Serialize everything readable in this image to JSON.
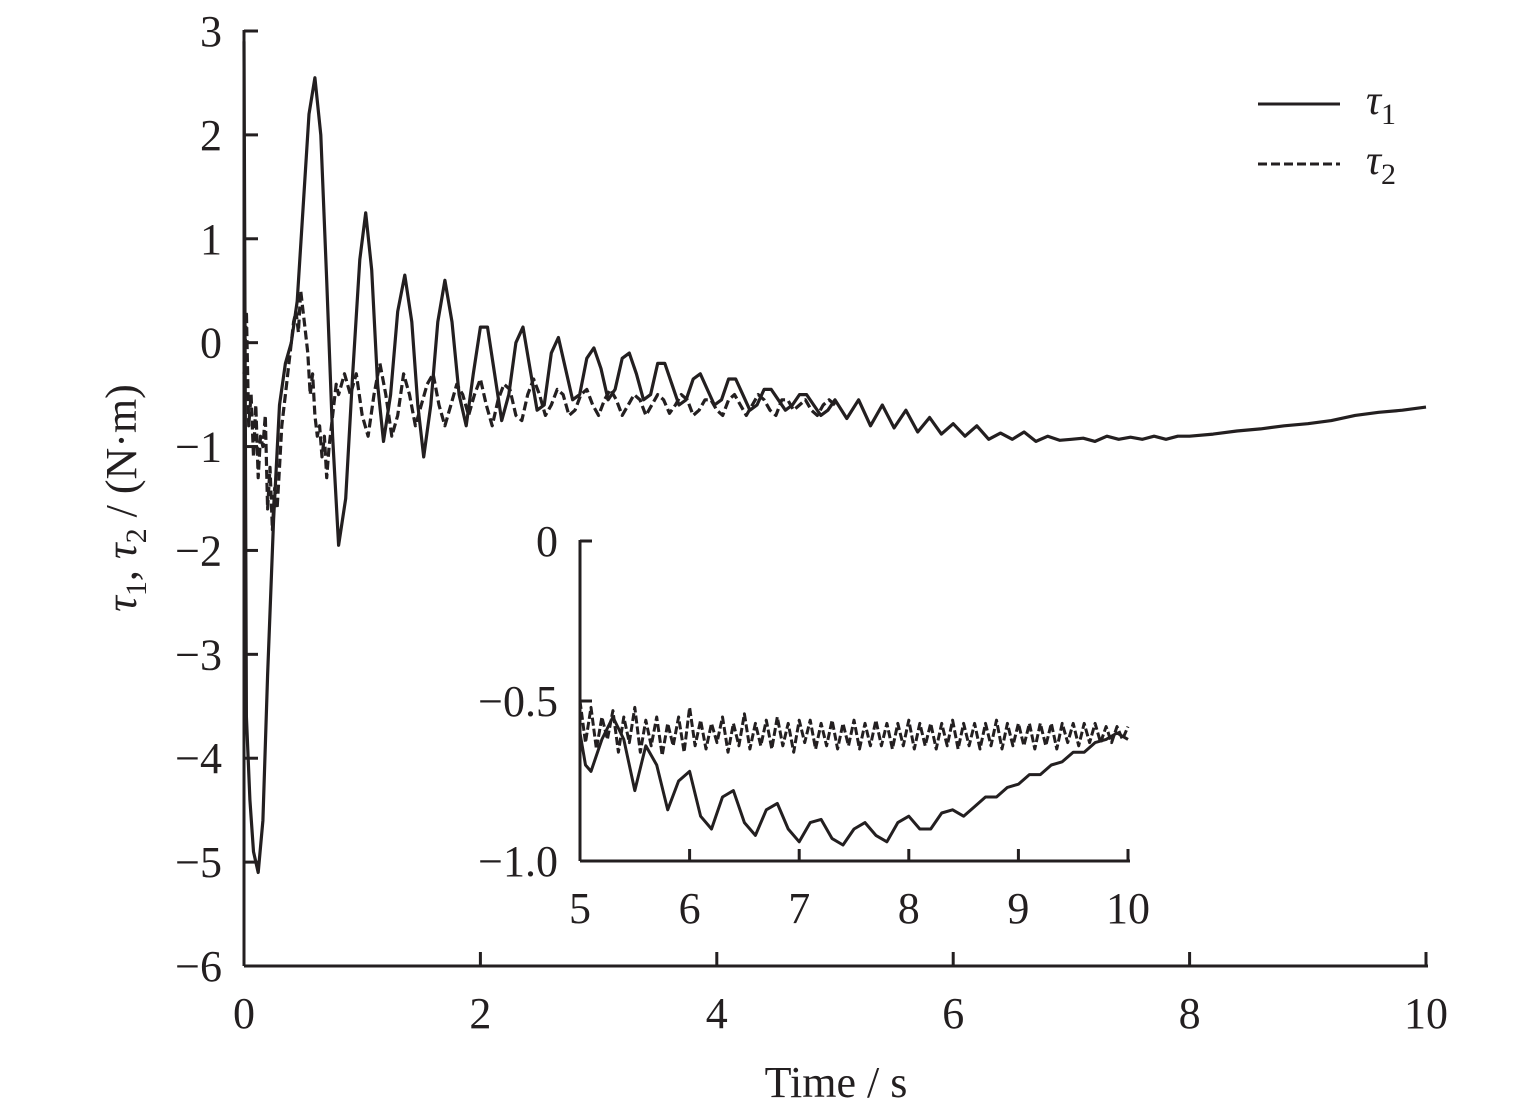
{
  "chart_data": [
    {
      "type": "line",
      "xlabel": "Time / s",
      "ylabel": "τ1, τ2 / (N·m)",
      "xlim": [
        0,
        10
      ],
      "ylim": [
        -6,
        3
      ],
      "xticks": [
        "0",
        "2",
        "4",
        "6",
        "8",
        "10"
      ],
      "yticks": [
        "3",
        "2",
        "1",
        "0",
        "−1",
        "−2",
        "−3",
        "−4",
        "−5",
        "−6"
      ],
      "grid": false,
      "legend_position": "top-right",
      "legend": [
        {
          "symbol": "τ",
          "subscript": "1",
          "style": "solid"
        },
        {
          "symbol": "τ",
          "subscript": "2",
          "style": "dashed"
        }
      ],
      "series": [
        {
          "name": "τ1",
          "style": "solid",
          "x": [
            0.0,
            0.02,
            0.05,
            0.08,
            0.12,
            0.16,
            0.2,
            0.25,
            0.3,
            0.35,
            0.4,
            0.45,
            0.5,
            0.55,
            0.6,
            0.65,
            0.7,
            0.75,
            0.8,
            0.86,
            0.92,
            0.98,
            1.03,
            1.08,
            1.13,
            1.18,
            1.24,
            1.3,
            1.36,
            1.42,
            1.47,
            1.52,
            1.58,
            1.64,
            1.7,
            1.76,
            1.82,
            1.88,
            1.94,
            2.0,
            2.06,
            2.12,
            2.18,
            2.24,
            2.3,
            2.36,
            2.42,
            2.48,
            2.54,
            2.6,
            2.66,
            2.72,
            2.78,
            2.84,
            2.9,
            2.96,
            3.02,
            3.08,
            3.14,
            3.2,
            3.26,
            3.32,
            3.38,
            3.44,
            3.5,
            3.56,
            3.62,
            3.68,
            3.74,
            3.8,
            3.86,
            3.92,
            3.98,
            4.04,
            4.1,
            4.16,
            4.22,
            4.28,
            4.34,
            4.4,
            4.46,
            4.52,
            4.58,
            4.64,
            4.7,
            4.76,
            4.82,
            4.88,
            4.94,
            5.0,
            5.1,
            5.2,
            5.3,
            5.4,
            5.5,
            5.6,
            5.7,
            5.8,
            5.9,
            6.0,
            6.1,
            6.2,
            6.3,
            6.4,
            6.5,
            6.6,
            6.7,
            6.8,
            6.9,
            7.0,
            7.1,
            7.2,
            7.3,
            7.4,
            7.5,
            7.6,
            7.7,
            7.8,
            7.9,
            8.0,
            8.2,
            8.4,
            8.6,
            8.8,
            9.0,
            9.2,
            9.4,
            9.6,
            9.8,
            10.0
          ],
          "y": [
            2.9,
            -3.6,
            -4.4,
            -4.9,
            -5.1,
            -4.6,
            -3.2,
            -1.7,
            -0.6,
            -0.2,
            0.0,
            0.4,
            1.3,
            2.2,
            2.55,
            2.0,
            0.6,
            -0.9,
            -1.95,
            -1.5,
            -0.3,
            0.8,
            1.25,
            0.7,
            -0.4,
            -0.95,
            -0.5,
            0.3,
            0.65,
            0.2,
            -0.6,
            -1.1,
            -0.6,
            0.2,
            0.6,
            0.2,
            -0.5,
            -0.8,
            -0.3,
            0.15,
            0.15,
            -0.3,
            -0.75,
            -0.5,
            0.0,
            0.15,
            -0.25,
            -0.65,
            -0.6,
            -0.1,
            0.05,
            -0.25,
            -0.55,
            -0.5,
            -0.15,
            -0.05,
            -0.25,
            -0.55,
            -0.45,
            -0.15,
            -0.1,
            -0.3,
            -0.55,
            -0.5,
            -0.2,
            -0.2,
            -0.4,
            -0.6,
            -0.55,
            -0.35,
            -0.3,
            -0.45,
            -0.6,
            -0.55,
            -0.35,
            -0.35,
            -0.5,
            -0.65,
            -0.6,
            -0.45,
            -0.45,
            -0.55,
            -0.65,
            -0.6,
            -0.5,
            -0.5,
            -0.6,
            -0.7,
            -0.65,
            -0.55,
            -0.73,
            -0.55,
            -0.8,
            -0.6,
            -0.82,
            -0.65,
            -0.86,
            -0.72,
            -0.88,
            -0.78,
            -0.9,
            -0.8,
            -0.93,
            -0.87,
            -0.93,
            -0.86,
            -0.95,
            -0.9,
            -0.94,
            -0.93,
            -0.92,
            -0.95,
            -0.9,
            -0.93,
            -0.91,
            -0.93,
            -0.9,
            -0.93,
            -0.9,
            -0.9,
            -0.88,
            -0.85,
            -0.83,
            -0.8,
            -0.78,
            -0.75,
            -0.7,
            -0.67,
            -0.65,
            -0.62
          ]
        },
        {
          "name": "τ2",
          "style": "dashed",
          "x": [
            0.0,
            0.02,
            0.04,
            0.06,
            0.08,
            0.1,
            0.12,
            0.14,
            0.16,
            0.18,
            0.2,
            0.22,
            0.24,
            0.26,
            0.28,
            0.3,
            0.32,
            0.34,
            0.36,
            0.38,
            0.4,
            0.42,
            0.44,
            0.46,
            0.48,
            0.5,
            0.52,
            0.54,
            0.56,
            0.58,
            0.6,
            0.62,
            0.64,
            0.66,
            0.68,
            0.7,
            0.72,
            0.74,
            0.76,
            0.78,
            0.8,
            0.85,
            0.9,
            0.95,
            1.0,
            1.05,
            1.1,
            1.15,
            1.2,
            1.25,
            1.3,
            1.35,
            1.4,
            1.45,
            1.5,
            1.55,
            1.6,
            1.65,
            1.7,
            1.75,
            1.8,
            1.85,
            1.9,
            1.95,
            2.0,
            2.05,
            2.1,
            2.15,
            2.2,
            2.25,
            2.3,
            2.35,
            2.4,
            2.45,
            2.5,
            2.55,
            2.6,
            2.65,
            2.7,
            2.75,
            2.8,
            2.85,
            2.9,
            2.95,
            3.0,
            3.05,
            3.1,
            3.15,
            3.2,
            3.25,
            3.3,
            3.35,
            3.4,
            3.45,
            3.5,
            3.55,
            3.6,
            3.65,
            3.7,
            3.75,
            3.8,
            3.85,
            3.9,
            3.95,
            4.0,
            4.05,
            4.1,
            4.15,
            4.2,
            4.25,
            4.3,
            4.35,
            4.4,
            4.45,
            4.5,
            4.55,
            4.6,
            4.65,
            4.7,
            4.75,
            4.8,
            4.85,
            4.9,
            4.95,
            5.0
          ],
          "y": [
            -0.3,
            0.3,
            -0.8,
            -0.5,
            -1.1,
            -0.6,
            -1.3,
            -0.9,
            -1.0,
            -0.7,
            -1.6,
            -1.2,
            -1.8,
            -1.4,
            -1.6,
            -1.2,
            -0.8,
            -0.6,
            -0.4,
            -0.2,
            0.0,
            0.2,
            0.3,
            0.1,
            0.5,
            0.3,
            0.1,
            -0.1,
            -0.5,
            -0.3,
            -0.7,
            -0.9,
            -0.8,
            -1.1,
            -0.9,
            -1.3,
            -1.0,
            -0.8,
            -0.6,
            -0.4,
            -0.5,
            -0.3,
            -0.5,
            -0.3,
            -0.7,
            -0.9,
            -0.5,
            -0.2,
            -0.5,
            -0.9,
            -0.7,
            -0.3,
            -0.5,
            -0.8,
            -0.6,
            -0.4,
            -0.3,
            -0.6,
            -0.8,
            -0.6,
            -0.4,
            -0.5,
            -0.7,
            -0.5,
            -0.35,
            -0.6,
            -0.8,
            -0.55,
            -0.4,
            -0.45,
            -0.7,
            -0.75,
            -0.5,
            -0.35,
            -0.5,
            -0.7,
            -0.6,
            -0.45,
            -0.5,
            -0.7,
            -0.65,
            -0.5,
            -0.45,
            -0.6,
            -0.7,
            -0.55,
            -0.45,
            -0.55,
            -0.7,
            -0.6,
            -0.5,
            -0.55,
            -0.7,
            -0.6,
            -0.5,
            -0.55,
            -0.68,
            -0.6,
            -0.5,
            -0.55,
            -0.7,
            -0.65,
            -0.55,
            -0.55,
            -0.65,
            -0.7,
            -0.55,
            -0.5,
            -0.6,
            -0.7,
            -0.6,
            -0.5,
            -0.55,
            -0.65,
            -0.7,
            -0.55,
            -0.55,
            -0.65,
            -0.6,
            -0.55,
            -0.65,
            -0.7,
            -0.6,
            -0.55,
            -0.6
          ]
        }
      ]
    },
    {
      "type": "line",
      "xlim": [
        5,
        10
      ],
      "ylim": [
        -1.0,
        0
      ],
      "xticks": [
        "5",
        "6",
        "7",
        "8",
        "9",
        "10"
      ],
      "yticks": [
        "0",
        "−0.5",
        "−1.0"
      ],
      "grid": false,
      "series": [
        {
          "name": "τ1",
          "style": "solid",
          "x": [
            5.0,
            5.05,
            5.1,
            5.2,
            5.3,
            5.4,
            5.5,
            5.6,
            5.7,
            5.8,
            5.9,
            6.0,
            6.1,
            6.2,
            6.3,
            6.4,
            6.5,
            6.6,
            6.7,
            6.8,
            6.9,
            7.0,
            7.1,
            7.2,
            7.3,
            7.4,
            7.5,
            7.6,
            7.7,
            7.8,
            7.9,
            8.0,
            8.1,
            8.2,
            8.3,
            8.4,
            8.5,
            8.6,
            8.7,
            8.8,
            8.9,
            9.0,
            9.1,
            9.2,
            9.3,
            9.4,
            9.5,
            9.6,
            9.7,
            9.8,
            9.9,
            10.0
          ],
          "y": [
            -0.6,
            -0.7,
            -0.72,
            -0.62,
            -0.55,
            -0.62,
            -0.78,
            -0.64,
            -0.7,
            -0.84,
            -0.75,
            -0.72,
            -0.86,
            -0.9,
            -0.8,
            -0.78,
            -0.88,
            -0.92,
            -0.84,
            -0.82,
            -0.9,
            -0.94,
            -0.88,
            -0.87,
            -0.93,
            -0.95,
            -0.9,
            -0.88,
            -0.92,
            -0.94,
            -0.88,
            -0.86,
            -0.9,
            -0.9,
            -0.85,
            -0.84,
            -0.86,
            -0.83,
            -0.8,
            -0.8,
            -0.77,
            -0.76,
            -0.73,
            -0.73,
            -0.7,
            -0.69,
            -0.66,
            -0.66,
            -0.63,
            -0.62,
            -0.6,
            -0.62
          ]
        },
        {
          "name": "τ2",
          "style": "dashed",
          "x": [
            5.0,
            5.05,
            5.1,
            5.15,
            5.2,
            5.25,
            5.3,
            5.35,
            5.4,
            5.45,
            5.5,
            5.55,
            5.6,
            5.65,
            5.7,
            5.75,
            5.8,
            5.85,
            5.9,
            5.95,
            6.0,
            6.05,
            6.1,
            6.15,
            6.2,
            6.25,
            6.3,
            6.35,
            6.4,
            6.45,
            6.5,
            6.55,
            6.6,
            6.65,
            6.7,
            6.75,
            6.8,
            6.85,
            6.9,
            6.95,
            7.0,
            7.05,
            7.1,
            7.15,
            7.2,
            7.25,
            7.3,
            7.35,
            7.4,
            7.45,
            7.5,
            7.55,
            7.6,
            7.65,
            7.7,
            7.75,
            7.8,
            7.85,
            7.9,
            7.95,
            8.0,
            8.05,
            8.1,
            8.15,
            8.2,
            8.25,
            8.3,
            8.35,
            8.4,
            8.45,
            8.5,
            8.55,
            8.6,
            8.65,
            8.7,
            8.75,
            8.8,
            8.85,
            8.9,
            8.95,
            9.0,
            9.05,
            9.1,
            9.15,
            9.2,
            9.25,
            9.3,
            9.35,
            9.4,
            9.45,
            9.5,
            9.55,
            9.6,
            9.65,
            9.7,
            9.75,
            9.8,
            9.85,
            9.9,
            9.95,
            10.0
          ],
          "y": [
            -0.5,
            -0.63,
            -0.52,
            -0.65,
            -0.55,
            -0.62,
            -0.53,
            -0.66,
            -0.55,
            -0.63,
            -0.52,
            -0.66,
            -0.56,
            -0.64,
            -0.55,
            -0.67,
            -0.57,
            -0.64,
            -0.55,
            -0.66,
            -0.52,
            -0.64,
            -0.56,
            -0.65,
            -0.57,
            -0.63,
            -0.55,
            -0.66,
            -0.57,
            -0.64,
            -0.54,
            -0.65,
            -0.57,
            -0.64,
            -0.56,
            -0.65,
            -0.55,
            -0.64,
            -0.57,
            -0.66,
            -0.56,
            -0.63,
            -0.56,
            -0.65,
            -0.57,
            -0.64,
            -0.56,
            -0.65,
            -0.57,
            -0.64,
            -0.56,
            -0.65,
            -0.57,
            -0.64,
            -0.56,
            -0.64,
            -0.57,
            -0.65,
            -0.57,
            -0.64,
            -0.56,
            -0.65,
            -0.57,
            -0.64,
            -0.57,
            -0.65,
            -0.57,
            -0.64,
            -0.56,
            -0.65,
            -0.57,
            -0.64,
            -0.57,
            -0.65,
            -0.57,
            -0.64,
            -0.56,
            -0.65,
            -0.57,
            -0.64,
            -0.57,
            -0.64,
            -0.57,
            -0.65,
            -0.57,
            -0.64,
            -0.57,
            -0.65,
            -0.57,
            -0.63,
            -0.57,
            -0.64,
            -0.57,
            -0.63,
            -0.57,
            -0.63,
            -0.58,
            -0.63,
            -0.58,
            -0.62,
            -0.58
          ]
        }
      ]
    }
  ]
}
